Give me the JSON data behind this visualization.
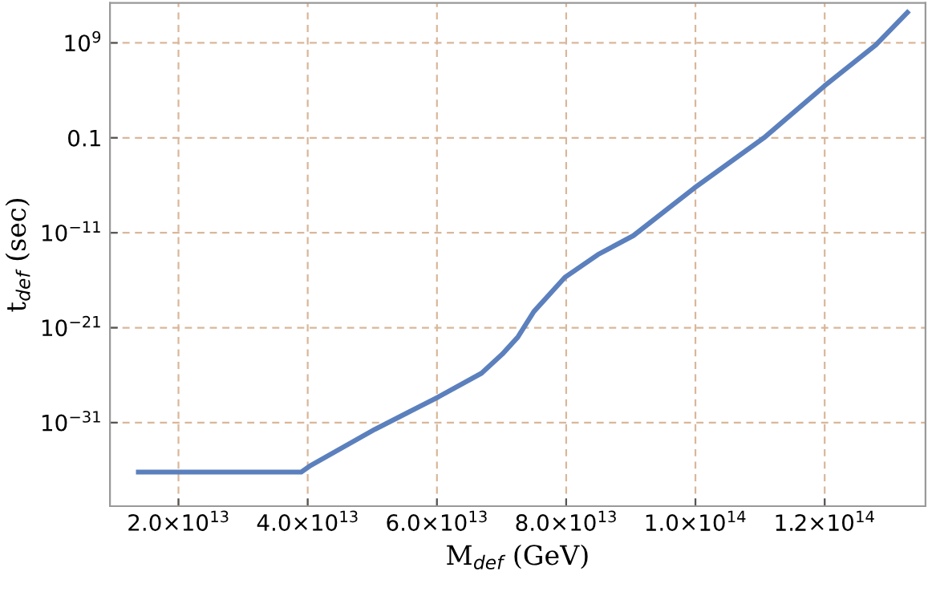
{
  "chart_data": {
    "type": "line",
    "xlabel": "M$_{def}$ (GeV)",
    "ylabel": "t$_{def}$ (sec)",
    "x": [
      13800000000000.0,
      39000000000000.0,
      40500000000000.0,
      50400000000000.0,
      60200000000000.0,
      66900000000000.0,
      70100000000000.0,
      72500000000000.0,
      75000000000000.0,
      79800000000000.0,
      84900000000000.0,
      90400000000000.0,
      99800000000000.0,
      110600000000000.0,
      120000000000000.0,
      127900000000000.0,
      132800000000000.0
    ],
    "series": [
      {
        "color": "#5b80bd",
        "values": [
          6.3e-37,
          6.3e-37,
          3.2e-36,
          2e-32,
          5e-29,
          1.6e-26,
          1.6e-24,
          1e-22,
          5e-20,
          2e-16,
          5e-14,
          5e-12,
          5e-07,
          0.1,
          30000.0,
          600000000.0,
          1600000000000.0
        ]
      }
    ],
    "log": "y",
    "xlim": [
      9400000000000.0,
      135600000000000.0
    ],
    "ylim": [
      1.6e-40,
      16000000000000.0
    ],
    "xticks": [
      {
        "value": 20000000000000.0,
        "label": "2.0×10$^{13}$"
      },
      {
        "value": 40000000000000.0,
        "label": "4.0×10$^{13}$"
      },
      {
        "value": 60000000000000.0,
        "label": "6.0×10$^{13}$"
      },
      {
        "value": 80000000000000.0,
        "label": "8.0×10$^{13}$"
      },
      {
        "value": 100000000000000.0,
        "label": "1.0×10$^{14}$"
      },
      {
        "value": 120000000000000.0,
        "label": "1.2×10$^{14}$"
      }
    ],
    "yticks": [
      {
        "value": 1e-31,
        "label": "10$^{−31}$"
      },
      {
        "value": 1e-21,
        "label": "10$^{−21}$"
      },
      {
        "value": 1e-11,
        "label": "10$^{−11}$"
      },
      0.1,
      {
        "value": 1000000000.0,
        "label": "10$^{9}$"
      }
    ],
    "grid": true,
    "marker": "none",
    "line_style": "solid"
  }
}
